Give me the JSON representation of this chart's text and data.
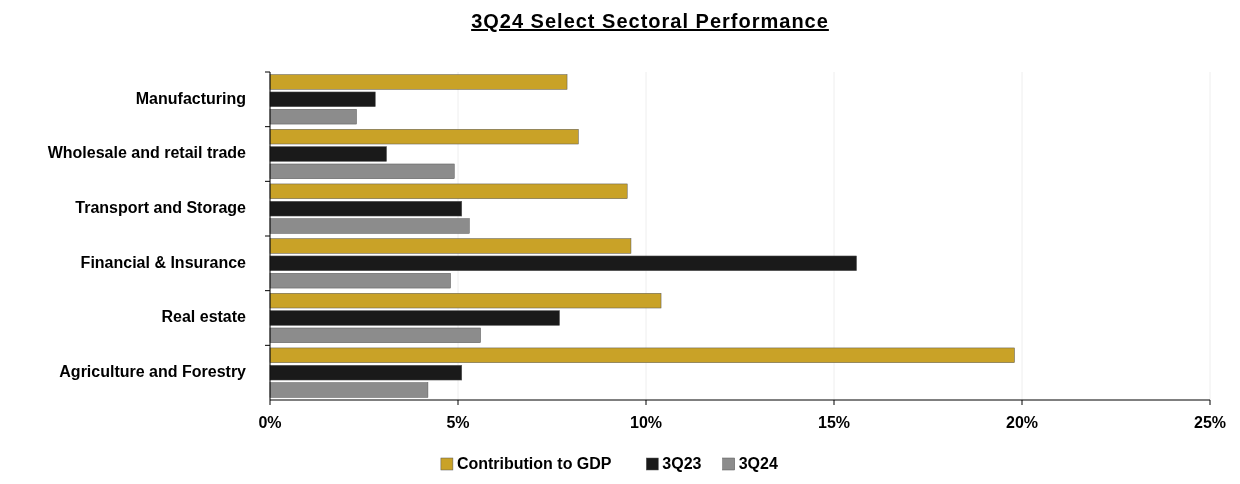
{
  "chart_data": {
    "type": "bar",
    "orientation": "horizontal",
    "title": "3Q24 Select Sectoral Performance",
    "categories": [
      "Manufacturing",
      "Wholesale and retail trade",
      "Transport and Storage",
      "Financial & Insurance",
      "Real estate",
      "Agriculture and Forestry"
    ],
    "series": [
      {
        "name": "Contribution to GDP",
        "color": "#c9a227",
        "values": [
          7.9,
          8.2,
          9.5,
          9.6,
          10.4,
          19.8
        ]
      },
      {
        "name": "3Q23",
        "color": "#1a1a1a",
        "values": [
          2.8,
          3.1,
          5.1,
          15.6,
          7.7,
          5.1
        ]
      },
      {
        "name": "3Q24",
        "color": "#8c8c8c",
        "values": [
          2.3,
          4.9,
          5.3,
          4.8,
          5.6,
          4.2
        ]
      }
    ],
    "xlim": [
      0,
      25
    ],
    "xticks": [
      {
        "value": 0,
        "label": "0%"
      },
      {
        "value": 5,
        "label": "5%"
      },
      {
        "value": 10,
        "label": "10%"
      },
      {
        "value": 15,
        "label": "15%"
      },
      {
        "value": 20,
        "label": "20%"
      },
      {
        "value": 25,
        "label": "25%"
      }
    ],
    "grid": "x",
    "legend": "bottom"
  }
}
